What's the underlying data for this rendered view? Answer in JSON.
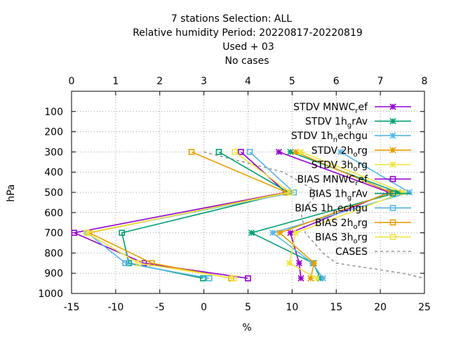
{
  "chart_data": {
    "type": "line",
    "title": [
      "7 stations Selection: ALL",
      "Relative humidity  Period: 20220817-20220819",
      "Used   + 03",
      "No cases"
    ],
    "xlabel": "%",
    "ylabel": "hPa",
    "xlim": [
      -15,
      25
    ],
    "x2lim": [
      0,
      8
    ],
    "ylim": [
      1000,
      0
    ],
    "y_reversed": true,
    "grid": true,
    "legend_position": "top-right",
    "x_ticks": [
      "-15",
      "-10",
      "-5",
      "0",
      "5",
      "10",
      "15",
      "20",
      "25"
    ],
    "x2_ticks": [
      "0",
      "1",
      "2",
      "3",
      "4",
      "5",
      "6",
      "7",
      "8"
    ],
    "y_ticks": [
      "100",
      "200",
      "300",
      "400",
      "500",
      "600",
      "700",
      "800",
      "900",
      "1000"
    ],
    "levels": [
      300,
      500,
      700,
      850,
      925
    ],
    "series": [
      {
        "name": "STDV MNWC_ref",
        "legend": [
          "STDV MNWC",
          "r",
          "ef"
        ],
        "color": "#9400d3",
        "marker": "x",
        "axis": "x",
        "values": [
          8.5,
          21.0,
          9.8,
          10.8,
          11.0
        ]
      },
      {
        "name": "STDV 1h_grAv",
        "legend": [
          "STDV 1h",
          "g",
          "rAv"
        ],
        "color": "#009e73",
        "marker": "x",
        "axis": "x",
        "values": [
          9.8,
          22.0,
          5.4,
          12.4,
          13.2
        ]
      },
      {
        "name": "STDV 1h_nechgu",
        "legend": [
          "STDV 1h",
          "n",
          "echgu"
        ],
        "color": "#56b4e9",
        "marker": "x",
        "axis": "x",
        "values": [
          15.5,
          23.3,
          7.8,
          12.3,
          13.5
        ]
      },
      {
        "name": "STDV 2h_org",
        "legend": [
          "STDV 2h",
          "o",
          "rg"
        ],
        "color": "#e69f00",
        "marker": "x",
        "axis": "x",
        "values": [
          10.4,
          21.2,
          8.6,
          12.5,
          12.1
        ]
      },
      {
        "name": "STDV 3h_org",
        "legend": [
          "STDV 3h",
          "o",
          "rg"
        ],
        "color": "#f0e442",
        "marker": "x",
        "axis": "x",
        "values": [
          11.0,
          22.6,
          10.4,
          9.7,
          12.8
        ]
      },
      {
        "name": "BIAS MNWC_ref",
        "legend": [
          "BIAS MNWC",
          "r",
          "ef"
        ],
        "color": "#9400d3",
        "marker": "square",
        "axis": "x",
        "values": [
          4.2,
          9.3,
          -14.7,
          -6.8,
          5.0
        ]
      },
      {
        "name": "BIAS 1h_grAv",
        "legend": [
          "BIAS 1h",
          "g",
          "rAv"
        ],
        "color": "#009e73",
        "marker": "square",
        "axis": "x",
        "values": [
          1.7,
          9.6,
          -9.3,
          -8.5,
          -0.1
        ]
      },
      {
        "name": "BIAS 1h_nechgu",
        "legend": [
          "BIAS 1h",
          "n",
          "echgu"
        ],
        "color": "#56b4e9",
        "marker": "square",
        "axis": "x",
        "values": [
          5.2,
          10.2,
          -13.2,
          -8.9,
          0.6
        ]
      },
      {
        "name": "BIAS 2h_org",
        "legend": [
          "BIAS 2h",
          "o",
          "rg"
        ],
        "color": "#e69f00",
        "marker": "square",
        "axis": "x",
        "values": [
          -1.4,
          9.4,
          -13.0,
          -5.9,
          3.1
        ]
      },
      {
        "name": "BIAS 3h_org",
        "legend": [
          "BIAS 3h",
          "o",
          "rg"
        ],
        "color": "#f0e442",
        "marker": "square",
        "axis": "x",
        "values": [
          3.5,
          9.8,
          -13.3,
          -7.4,
          3.4
        ]
      }
    ],
    "cases": {
      "name": "CASES",
      "legend": [
        "CASES",
        "",
        ""
      ],
      "color": "#999999",
      "axis": "x2",
      "points": [
        [
          3.0,
          300
        ],
        [
          4.8,
          400
        ],
        [
          5.6,
          500
        ],
        [
          5.2,
          600
        ],
        [
          5.3,
          700
        ],
        [
          5.7,
          800
        ],
        [
          6.0,
          850
        ],
        [
          7.5,
          900
        ],
        [
          8.0,
          925
        ]
      ]
    }
  }
}
